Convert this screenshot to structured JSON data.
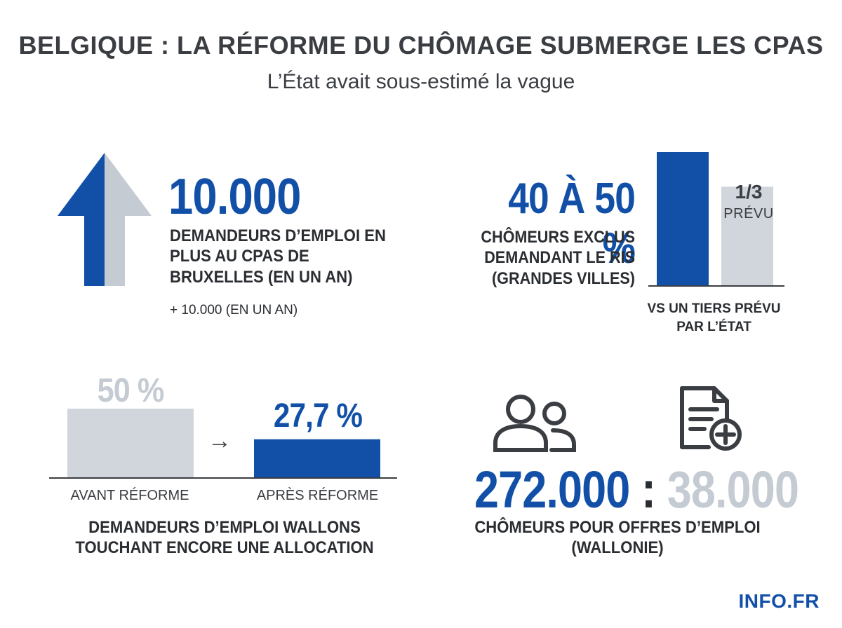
{
  "header": {
    "title": "BELGIQUE : LA RÉFORME DU CHÔMAGE SUBMERGE LES CPAS",
    "subtitle": "L’État avait sous-estimé la vague"
  },
  "panel_bruxelles": {
    "value": "10.000",
    "description": "DEMANDEURS D’EMPLOI EN PLUS AU CPAS DE BRUXELLES (EN UN AN)",
    "note": "+ 10.000 (EN UN AN)",
    "icon": "up-arrow-icon"
  },
  "panel_ris": {
    "value": "40 À 50 %",
    "description": "CHÔMEURS EXCLUS DEMANDANT LE RIS (GRANDES VILLES)",
    "bar_label_fraction": "1/3",
    "bar_label_word": "PRÉVU",
    "caption": "VS UN TIERS PRÉVU PAR L’ÉTAT"
  },
  "panel_wallons": {
    "before_value": "50 %",
    "after_value": "27,7 %",
    "before_label": "AVANT RÉFORME",
    "after_label": "APRÈS RÉFORME",
    "arrow": "→",
    "description": "DEMANDEURS D’EMPLOI WALLONS TOUCHANT ENCORE UNE ALLOCATION"
  },
  "panel_offres": {
    "left_value": "272.000",
    "separator": ":",
    "right_value": "38.000",
    "description": "CHÔMEURS POUR OFFRES D’EMPLOI (WALLONIE)",
    "icons": [
      "people-icon",
      "document-add-icon"
    ]
  },
  "footer": {
    "logo": "INFO.FR"
  },
  "colors": {
    "accent": "#1250a8",
    "muted": "#c5cbd3",
    "text": "#3a3d42"
  },
  "chart_data": [
    {
      "type": "bar",
      "categories": [
        "",
        "1/3 PRÉVU"
      ],
      "values": [
        45,
        33.3
      ],
      "ylim": [
        0,
        45
      ],
      "colors": [
        "#1250a8",
        "#d1d6dd"
      ]
    },
    {
      "type": "bar",
      "categories": [
        "AVANT RÉFORME",
        "APRÈS RÉFORME"
      ],
      "values": [
        50,
        27.7
      ],
      "ylim": [
        0,
        50
      ],
      "colors": [
        "#d1d6dd",
        "#1250a8"
      ]
    }
  ]
}
